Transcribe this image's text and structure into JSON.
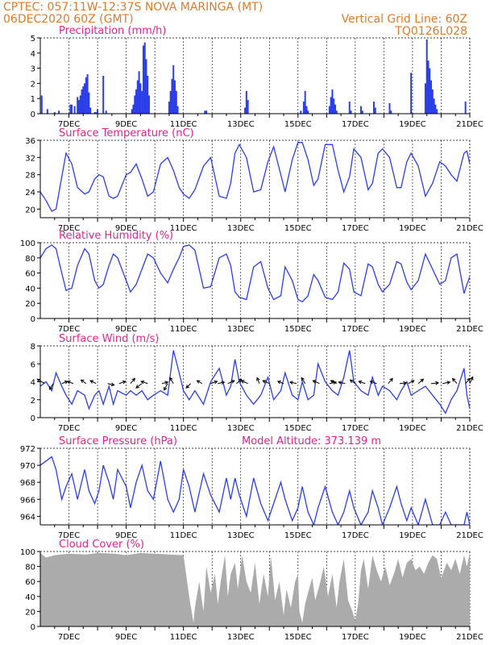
{
  "header": {
    "line1_left": "CPTEC:  057:11W-12:37S  NOVA MARINGA (MT)",
    "line2_left": "06DEC2020 60Z (GMT)",
    "grid_note": "Vertical Grid Line: 60Z",
    "code": "TQ0126L028"
  },
  "colors": {
    "header": "#e07b2a",
    "title": "#e0248c",
    "series": "#2b3ee8",
    "cloud": "#ababab"
  },
  "x_axis": {
    "tick_labels": [
      "7DEC",
      "9DEC",
      "11DEC",
      "13DEC",
      "15DEC",
      "17DEC",
      "19DEC",
      "21DEC"
    ],
    "range_days": [
      6.0,
      21.0
    ]
  },
  "chart_data": [
    {
      "type": "bar",
      "title": "Precipitation  (mm/h)",
      "ylim": [
        0,
        5
      ],
      "yticks": [
        0,
        1,
        2,
        3,
        4,
        5
      ],
      "x": [
        6.05,
        6.25,
        6.5,
        6.65,
        7.05,
        7.1,
        7.2,
        7.3,
        7.35,
        7.4,
        7.45,
        7.5,
        7.55,
        7.6,
        7.65,
        7.7,
        7.75,
        7.9,
        7.95,
        8.0,
        8.2,
        8.3,
        9.2,
        9.25,
        9.3,
        9.35,
        9.4,
        9.45,
        9.5,
        9.55,
        9.6,
        9.65,
        9.7,
        9.75,
        9.8,
        10.5,
        10.55,
        10.6,
        10.65,
        10.7,
        10.75,
        10.8,
        11.75,
        11.8,
        13.15,
        13.2,
        13.25,
        15.1,
        15.2,
        15.25,
        15.3,
        15.35,
        16.1,
        16.15,
        16.2,
        16.25,
        16.3,
        16.35,
        16.8,
        16.85,
        17.2,
        17.25,
        17.65,
        17.7,
        18.2,
        18.25,
        18.95,
        19.45,
        19.5,
        19.55,
        19.6,
        19.65,
        19.7,
        19.75,
        19.8,
        19.85,
        20.85
      ],
      "values": [
        1.2,
        0.3,
        0.1,
        0.2,
        0.6,
        0.6,
        0.5,
        1.1,
        0.9,
        1.2,
        1.6,
        1.8,
        2.0,
        2.4,
        2.6,
        1.4,
        0.4,
        0.1,
        0.1,
        0.3,
        2.5,
        0.2,
        0.3,
        0.6,
        1.2,
        1.6,
        2.2,
        2.8,
        2.0,
        1.5,
        4.5,
        4.7,
        3.6,
        2.5,
        1.2,
        0.8,
        1.5,
        2.3,
        3.2,
        2.2,
        1.5,
        0.5,
        0.2,
        0.2,
        0.4,
        1.5,
        0.9,
        0.2,
        0.8,
        1.5,
        0.5,
        0.2,
        0.5,
        1.1,
        1.6,
        1.0,
        0.6,
        0.2,
        0.8,
        0.2,
        0.5,
        0.2,
        0.8,
        0.4,
        0.7,
        0.2,
        2.7,
        2.0,
        4.9,
        3.5,
        3.0,
        2.2,
        1.6,
        1.0,
        0.6,
        0.3,
        0.8
      ]
    },
    {
      "type": "line",
      "title": "Surface Temperature  (nC)",
      "ylim": [
        18,
        36
      ],
      "yticks": [
        20,
        24,
        28,
        32,
        36
      ],
      "x": [
        6.0,
        6.2,
        6.4,
        6.55,
        6.75,
        6.9,
        7.1,
        7.3,
        7.55,
        7.7,
        7.9,
        8.05,
        8.2,
        8.4,
        8.55,
        8.7,
        9.0,
        9.15,
        9.35,
        9.55,
        9.75,
        9.95,
        10.2,
        10.45,
        10.65,
        10.85,
        11.0,
        11.2,
        11.4,
        11.7,
        11.95,
        12.25,
        12.5,
        12.65,
        12.8,
        12.95,
        13.2,
        13.45,
        13.7,
        13.95,
        14.15,
        14.4,
        14.55,
        14.8,
        15.0,
        15.15,
        15.35,
        15.55,
        15.7,
        15.95,
        16.2,
        16.4,
        16.6,
        16.8,
        16.95,
        17.2,
        17.45,
        17.6,
        17.8,
        17.95,
        18.2,
        18.45,
        18.6,
        18.8,
        18.95,
        19.2,
        19.45,
        19.7,
        19.95,
        20.15,
        20.35,
        20.55,
        20.8,
        20.9,
        21.0
      ],
      "values": [
        24.0,
        22.0,
        19.5,
        20.0,
        27.5,
        33.0,
        30.5,
        25.0,
        23.5,
        24.0,
        27.0,
        28.0,
        27.5,
        23.0,
        22.5,
        23.0,
        28.0,
        28.5,
        30.5,
        27.0,
        23.0,
        24.0,
        30.5,
        32.0,
        29.0,
        25.0,
        23.5,
        22.5,
        24.5,
        30.0,
        32.0,
        23.0,
        22.5,
        26.0,
        33.0,
        35.0,
        32.0,
        24.0,
        24.5,
        31.0,
        34.5,
        28.0,
        24.0,
        31.5,
        35.5,
        35.5,
        31.5,
        25.5,
        27.0,
        35.0,
        35.0,
        29.0,
        24.0,
        27.5,
        34.0,
        32.0,
        24.5,
        26.0,
        33.0,
        34.0,
        32.0,
        25.0,
        25.0,
        31.0,
        33.0,
        30.0,
        23.0,
        26.0,
        31.0,
        30.0,
        28.0,
        26.5,
        33.0,
        33.5,
        30.5
      ]
    },
    {
      "type": "line",
      "title": "Relative Humidity  (%)",
      "ylim": [
        0,
        100
      ],
      "yticks": [
        0,
        20,
        40,
        60,
        80,
        100
      ],
      "x": [
        6.0,
        6.2,
        6.4,
        6.55,
        6.75,
        6.9,
        7.1,
        7.3,
        7.55,
        7.7,
        7.9,
        8.05,
        8.2,
        8.4,
        8.55,
        8.7,
        9.0,
        9.15,
        9.35,
        9.55,
        9.75,
        9.95,
        10.2,
        10.45,
        10.65,
        10.85,
        11.0,
        11.2,
        11.4,
        11.7,
        11.95,
        12.25,
        12.5,
        12.65,
        12.8,
        12.95,
        13.2,
        13.45,
        13.7,
        13.95,
        14.15,
        14.4,
        14.55,
        14.8,
        15.0,
        15.15,
        15.35,
        15.55,
        15.7,
        15.95,
        16.2,
        16.4,
        16.6,
        16.8,
        16.95,
        17.2,
        17.45,
        17.6,
        17.8,
        17.95,
        18.2,
        18.45,
        18.6,
        18.8,
        18.95,
        19.2,
        19.45,
        19.7,
        19.95,
        20.15,
        20.35,
        20.55,
        20.8,
        20.9,
        21.0
      ],
      "values": [
        80.0,
        92.0,
        97.0,
        92.0,
        60.0,
        37.0,
        40.0,
        70.0,
        92.0,
        85.0,
        50.0,
        40.0,
        45.0,
        70.0,
        85.0,
        80.0,
        50.0,
        35.0,
        45.0,
        65.0,
        85.0,
        80.0,
        60.0,
        47.0,
        65.0,
        80.0,
        95.0,
        97.0,
        90.0,
        40.0,
        42.0,
        80.0,
        85.0,
        70.0,
        35.0,
        28.0,
        25.0,
        68.0,
        75.0,
        40.0,
        25.0,
        30.0,
        68.0,
        50.0,
        25.0,
        22.0,
        30.0,
        58.0,
        50.0,
        28.0,
        25.0,
        35.0,
        73.0,
        65.0,
        35.0,
        30.0,
        72.0,
        68.0,
        45.0,
        35.0,
        45.0,
        75.0,
        72.0,
        48.0,
        38.0,
        50.0,
        85.0,
        65.0,
        45.0,
        50.0,
        80.0,
        85.0,
        33.0,
        45.0,
        55.0
      ]
    },
    {
      "type": "line",
      "title": "Surface Wind  (m/s)",
      "ylim": [
        0,
        8
      ],
      "yticks": [
        0,
        2,
        4,
        6,
        8
      ],
      "x": [
        6.0,
        6.2,
        6.4,
        6.55,
        6.75,
        6.9,
        7.1,
        7.3,
        7.55,
        7.7,
        7.9,
        8.05,
        8.2,
        8.4,
        8.55,
        8.7,
        9.0,
        9.15,
        9.35,
        9.55,
        9.75,
        9.95,
        10.2,
        10.45,
        10.65,
        10.85,
        11.0,
        11.2,
        11.4,
        11.7,
        11.95,
        12.25,
        12.5,
        12.65,
        12.8,
        12.95,
        13.2,
        13.45,
        13.7,
        13.95,
        14.15,
        14.4,
        14.55,
        14.8,
        15.0,
        15.15,
        15.35,
        15.55,
        15.7,
        15.95,
        16.2,
        16.4,
        16.6,
        16.8,
        16.95,
        17.2,
        17.45,
        17.6,
        17.8,
        17.95,
        18.2,
        18.45,
        18.6,
        18.8,
        18.95,
        19.2,
        19.45,
        19.7,
        19.95,
        20.15,
        20.35,
        20.55,
        20.8,
        20.9,
        21.0
      ],
      "values": [
        3.5,
        4.0,
        3.0,
        5.0,
        3.5,
        2.5,
        1.5,
        3.0,
        2.5,
        1.0,
        2.5,
        3.0,
        1.5,
        3.5,
        1.5,
        3.0,
        2.5,
        3.0,
        2.5,
        3.0,
        2.0,
        2.5,
        3.0,
        2.5,
        7.5,
        5.0,
        3.0,
        2.0,
        3.0,
        1.5,
        4.0,
        5.5,
        2.5,
        3.5,
        6.5,
        4.0,
        2.5,
        1.5,
        2.5,
        4.5,
        2.0,
        3.0,
        5.0,
        2.5,
        2.0,
        4.0,
        2.0,
        2.5,
        6.0,
        4.0,
        3.0,
        2.5,
        4.5,
        7.5,
        4.0,
        3.0,
        2.5,
        4.5,
        2.5,
        3.5,
        3.0,
        2.0,
        3.0,
        4.0,
        2.5,
        3.0,
        3.5,
        2.5,
        1.5,
        0.5,
        2.0,
        3.0,
        5.5,
        2.5,
        1.0
      ],
      "vectors": {
        "y_level": 3.8,
        "x": [
          6.15,
          6.45,
          6.75,
          7.15,
          7.6,
          7.95,
          8.35,
          8.75,
          9.15,
          9.55,
          9.75,
          10.25,
          10.45,
          10.65,
          11.25,
          11.65,
          11.95,
          12.2,
          12.55,
          12.85,
          13.25,
          13.65,
          14.0,
          14.5,
          14.95,
          15.25,
          15.75,
          16.1,
          16.35,
          16.65,
          17.0,
          17.35,
          17.75,
          18.15,
          18.55,
          18.85,
          19.2,
          19.65,
          20.05,
          20.55,
          20.85,
          21.0
        ],
        "u": [
          -1.0,
          -0.5,
          0.8,
          -0.8,
          -0.7,
          -0.8,
          0.9,
          0.9,
          0.6,
          -0.8,
          -0.9,
          0.8,
          -0.5,
          -0.5,
          -0.6,
          -0.7,
          0.9,
          0.9,
          0.9,
          0.7,
          -0.9,
          -0.3,
          -0.9,
          -0.8,
          -0.9,
          -0.5,
          -0.9,
          0.9,
          -0.8,
          -0.9,
          -0.7,
          -0.9,
          -0.9,
          0.6,
          0.9,
          0.8,
          0.7,
          1.0,
          1.0,
          -0.6,
          0.6,
          0.4
        ],
        "v": [
          0.6,
          -0.8,
          0.3,
          0.3,
          0.5,
          0.4,
          -0.2,
          0.3,
          0.7,
          -0.6,
          0.3,
          0.2,
          -0.9,
          0.8,
          -0.6,
          0.4,
          0.3,
          0.2,
          0.4,
          0.6,
          0.4,
          0.8,
          0.4,
          0.3,
          0.2,
          0.8,
          0.4,
          0.2,
          0.4,
          0.2,
          0.5,
          0.3,
          0.3,
          0.7,
          0.1,
          0.4,
          0.6,
          0.1,
          0.2,
          0.7,
          0.7,
          0.9
        ]
      }
    },
    {
      "type": "line",
      "title": "Surface Pressure  (hPa)",
      "annotation": "Model Altitude: 373.139  m",
      "ylim": [
        963,
        972
      ],
      "yticks": [
        964,
        966,
        968,
        970,
        972
      ],
      "x": [
        6.0,
        6.2,
        6.4,
        6.55,
        6.75,
        6.9,
        7.1,
        7.3,
        7.55,
        7.7,
        7.9,
        8.05,
        8.2,
        8.4,
        8.55,
        8.7,
        9.0,
        9.15,
        9.35,
        9.55,
        9.75,
        9.95,
        10.2,
        10.45,
        10.65,
        10.85,
        11.0,
        11.2,
        11.4,
        11.7,
        11.95,
        12.25,
        12.5,
        12.65,
        12.8,
        12.95,
        13.2,
        13.45,
        13.7,
        13.95,
        14.15,
        14.4,
        14.55,
        14.8,
        15.0,
        15.15,
        15.35,
        15.55,
        15.7,
        15.95,
        16.2,
        16.4,
        16.6,
        16.8,
        16.95,
        17.2,
        17.45,
        17.6,
        17.8,
        17.95,
        18.2,
        18.45,
        18.6,
        18.8,
        18.95,
        19.2,
        19.45,
        19.7,
        19.95,
        20.15,
        20.35,
        20.55,
        20.8,
        20.9,
        21.0
      ],
      "values": [
        970.0,
        970.5,
        971.0,
        969.5,
        966.0,
        967.5,
        969.0,
        966.0,
        969.5,
        967.0,
        965.5,
        967.0,
        970.0,
        968.0,
        966.0,
        969.5,
        967.5,
        965.0,
        968.0,
        970.0,
        967.0,
        966.0,
        970.5,
        966.0,
        964.5,
        966.0,
        969.5,
        967.5,
        964.5,
        969.0,
        966.5,
        964.5,
        968.5,
        966.0,
        968.5,
        966.5,
        964.0,
        968.5,
        965.5,
        963.5,
        965.5,
        968.0,
        966.0,
        963.5,
        965.0,
        967.5,
        964.5,
        963.0,
        965.0,
        967.5,
        964.5,
        963.0,
        964.5,
        967.0,
        965.0,
        963.0,
        964.5,
        967.0,
        965.0,
        963.0,
        965.0,
        967.5,
        965.5,
        963.5,
        965.0,
        963.0,
        966.0,
        963.0,
        962.5,
        964.5,
        962.5,
        962.5,
        962.5,
        964.5,
        963.0
      ]
    },
    {
      "type": "area",
      "title": "Cloud Cover  (%)",
      "ylim": [
        0,
        100
      ],
      "yticks": [
        0,
        20,
        40,
        60,
        80,
        100
      ],
      "x": [
        6.0,
        6.2,
        6.5,
        7.0,
        7.6,
        8.0,
        8.6,
        9.0,
        9.5,
        10.0,
        10.5,
        11.0,
        11.2,
        11.35,
        11.4,
        11.55,
        11.7,
        11.8,
        11.95,
        12.1,
        12.2,
        12.3,
        12.45,
        12.55,
        12.65,
        12.8,
        12.9,
        13.05,
        13.2,
        13.35,
        13.5,
        13.65,
        13.8,
        13.95,
        14.05,
        14.2,
        14.35,
        14.5,
        14.6,
        14.75,
        14.9,
        15.0,
        15.05,
        15.15,
        15.25,
        15.35,
        15.5,
        15.6,
        15.75,
        15.9,
        16.05,
        16.2,
        16.35,
        16.45,
        16.6,
        16.75,
        16.9,
        17.0,
        17.1,
        17.2,
        17.3,
        17.45,
        17.6,
        17.75,
        17.9,
        18.05,
        18.2,
        18.35,
        18.5,
        18.65,
        18.8,
        18.95,
        19.1,
        19.25,
        19.4,
        19.55,
        19.7,
        19.85,
        20.0,
        20.2,
        20.35,
        20.5,
        20.65,
        20.8,
        20.9,
        21.0
      ],
      "values": [
        98,
        92,
        95,
        97,
        96,
        98,
        97,
        95,
        98,
        97,
        96,
        95,
        40,
        5,
        25,
        60,
        20,
        80,
        45,
        70,
        30,
        60,
        95,
        40,
        70,
        85,
        50,
        95,
        60,
        45,
        85,
        30,
        70,
        40,
        95,
        35,
        60,
        15,
        50,
        25,
        60,
        70,
        20,
        5,
        30,
        45,
        65,
        35,
        55,
        80,
        40,
        70,
        25,
        60,
        90,
        35,
        20,
        8,
        30,
        75,
        90,
        50,
        95,
        75,
        60,
        80,
        55,
        70,
        90,
        65,
        85,
        90,
        75,
        80,
        70,
        85,
        95,
        90,
        65,
        85,
        75,
        90,
        70,
        95,
        80,
        98
      ]
    }
  ]
}
